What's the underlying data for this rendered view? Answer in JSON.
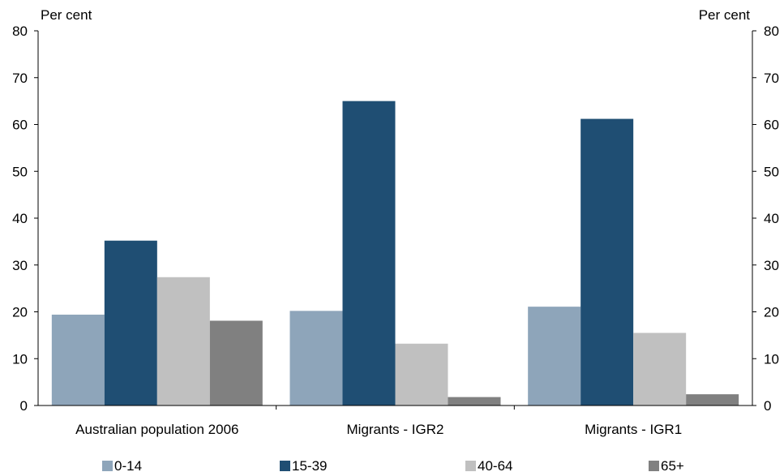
{
  "chart_data": {
    "type": "bar",
    "categories": [
      "Australian population 2006",
      "Migrants - IGR2",
      "Migrants - IGR1"
    ],
    "series": [
      {
        "name": "0-14",
        "color": "#8EA5BA",
        "values": [
          19.4,
          20.2,
          21.1
        ]
      },
      {
        "name": "15-39",
        "color": "#1F4E73",
        "values": [
          35.2,
          65.0,
          61.2
        ]
      },
      {
        "name": "40-64",
        "color": "#C0C0C0",
        "values": [
          27.4,
          13.2,
          15.5
        ]
      },
      {
        "name": "65+",
        "color": "#808080",
        "values": [
          18.1,
          1.8,
          2.4
        ]
      }
    ],
    "ylim": [
      0,
      80
    ],
    "yticks": [
      0,
      10,
      20,
      30,
      40,
      50,
      60,
      70,
      80
    ],
    "y_unit_left": "Per cent",
    "y_unit_right": "Per cent",
    "legend_position": "bottom",
    "grid": false
  }
}
